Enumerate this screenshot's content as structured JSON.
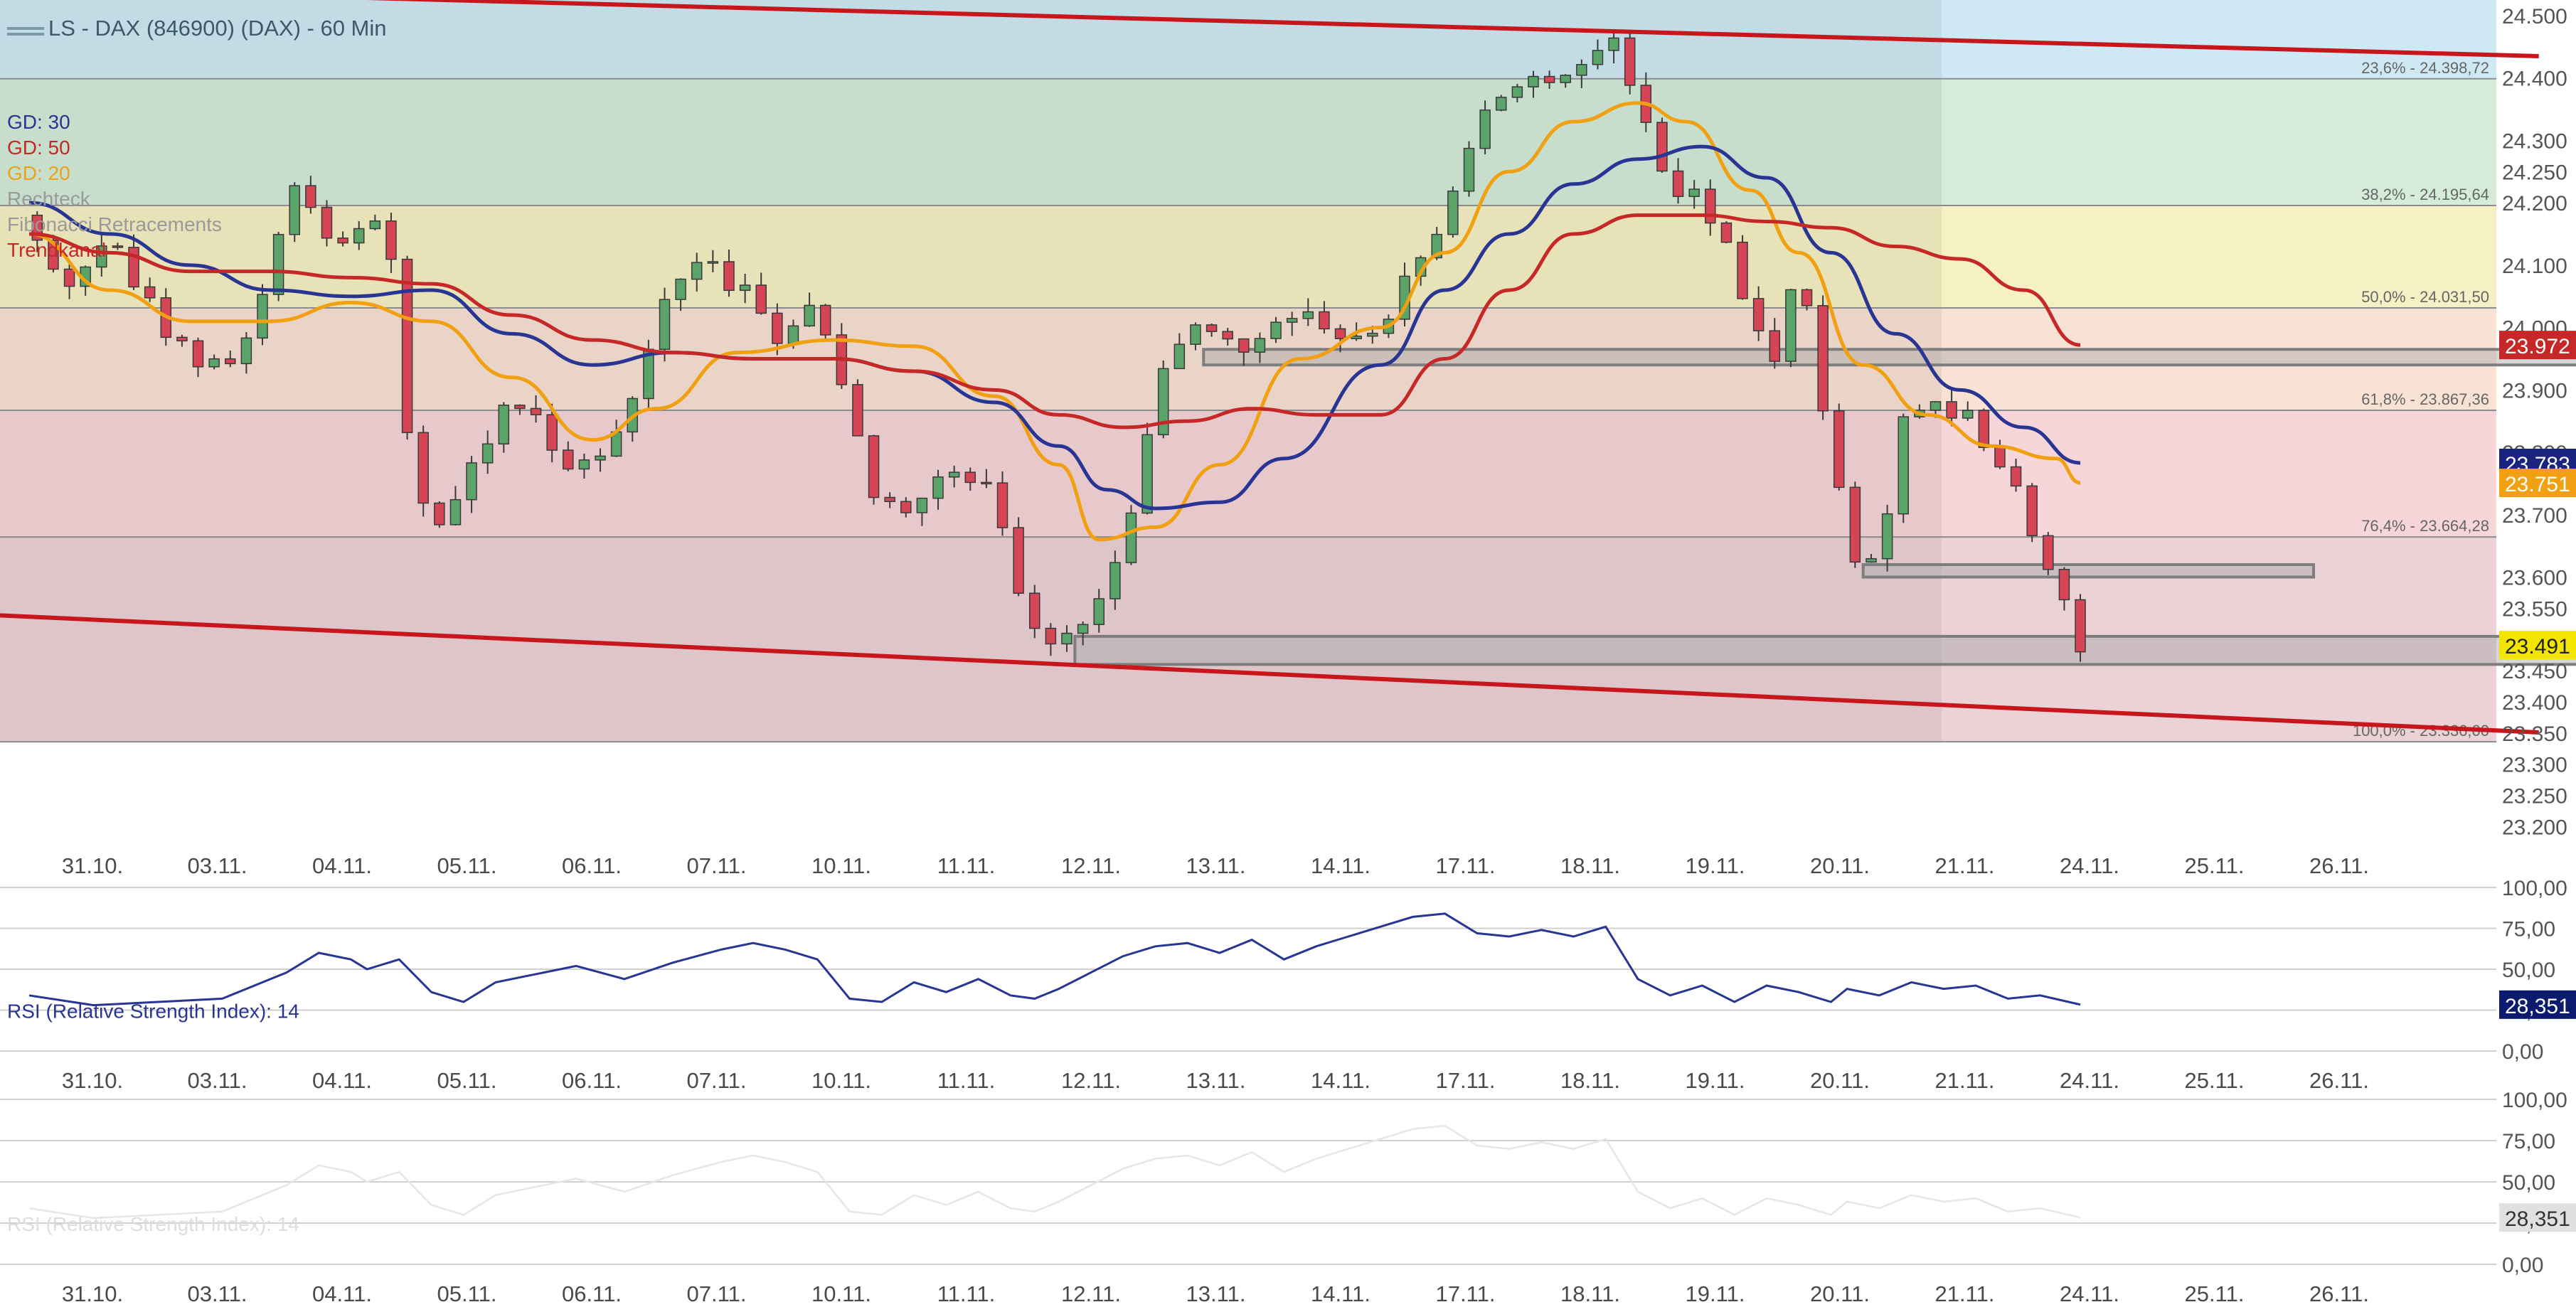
{
  "title": "LS - DAX (846900) (DAX) - 60 Min",
  "legend": [
    {
      "label": "GD: 30",
      "color": "#283593"
    },
    {
      "label": "GD: 50",
      "color": "#c62828"
    },
    {
      "label": "GD: 20",
      "color": "#f0a010"
    },
    {
      "label": "Rechteck",
      "color": "#9a9a9a"
    },
    {
      "label": "Fibonacci Retracements",
      "color": "#9a9a9a"
    },
    {
      "label": "Trendkanal",
      "color": "#c62828"
    }
  ],
  "colors": {
    "up": "#5aa469",
    "down": "#d64556",
    "rsi": "#283593"
  },
  "chart_data": [
    {
      "type": "candlestick",
      "title": "LS - DAX (846900) (DAX) - 60 Min",
      "ylim": [
        23180,
        24525
      ],
      "y_ticks": [
        "24.500",
        "24.400",
        "24.300",
        "24.250",
        "24.200",
        "24.100",
        "24.000",
        "23.900",
        "23.800",
        "23.700",
        "23.600",
        "23.550",
        "23.500",
        "23.450",
        "23.400",
        "23.350",
        "23.300",
        "23.250",
        "23.200"
      ],
      "x_ticks": [
        "31.10.",
        "03.11.",
        "04.11.",
        "05.11.",
        "06.11.",
        "07.11.",
        "10.11.",
        "11.11.",
        "12.11.",
        "13.11.",
        "14.11.",
        "17.11.",
        "18.11.",
        "19.11.",
        "20.11.",
        "21.11.",
        "24.11.",
        "25.11.",
        "26.11."
      ],
      "last_values": [
        {
          "label": "23.972",
          "color": "#c62828"
        },
        {
          "label": "23.783",
          "color": "#1a237e"
        },
        {
          "label": "23.751",
          "color": "#f0a010"
        },
        {
          "label": "23.491",
          "color": "#f2e600"
        }
      ],
      "fibonacci": [
        {
          "label": "23,6% - 24.398,72",
          "value": 24398.72
        },
        {
          "label": "38,2% - 24.195,64",
          "value": 24195.64
        },
        {
          "label": "50,0% - 24.031,50",
          "value": 24031.5
        },
        {
          "label": "61,8% - 23.867,36",
          "value": 23867.36
        },
        {
          "label": "76,4% - 23.664,28",
          "value": 23664.28
        },
        {
          "label": "100,0% - 23.336,00",
          "value": 23336.0
        }
      ],
      "price_path": [
        [
          0.0,
          24180
        ],
        [
          2.0,
          24060
        ],
        [
          5.0,
          24150
        ],
        [
          8.0,
          24010
        ],
        [
          10.5,
          23930
        ],
        [
          13.0,
          23960
        ],
        [
          14.5,
          24060
        ],
        [
          16.5,
          24230
        ],
        [
          18.0,
          24160
        ],
        [
          20.0,
          24140
        ],
        [
          21.5,
          24170
        ],
        [
          22.5,
          24110
        ],
        [
          23.5,
          23830
        ],
        [
          24.5,
          23720
        ],
        [
          25.5,
          23680
        ],
        [
          27.0,
          23760
        ],
        [
          29.0,
          23850
        ],
        [
          30.5,
          23870
        ],
        [
          33.0,
          23800
        ],
        [
          35.0,
          23760
        ],
        [
          37.0,
          23850
        ],
        [
          39.0,
          24000
        ],
        [
          40.5,
          24090
        ],
        [
          42.0,
          24100
        ],
        [
          44.5,
          24060
        ],
        [
          46.5,
          23960
        ],
        [
          48.5,
          24020
        ],
        [
          50.0,
          23960
        ],
        [
          52.0,
          23760
        ],
        [
          54.0,
          23690
        ],
        [
          56.0,
          23760
        ],
        [
          58.0,
          23780
        ],
        [
          60.0,
          23740
        ],
        [
          61.0,
          23620
        ],
        [
          62.5,
          23500
        ],
        [
          63.5,
          23480
        ],
        [
          65.5,
          23520
        ],
        [
          67.5,
          23620
        ],
        [
          69.0,
          23760
        ],
        [
          70.0,
          23880
        ],
        [
          71.0,
          23960
        ],
        [
          73.0,
          24000
        ],
        [
          75.0,
          23960
        ],
        [
          77.0,
          24010
        ],
        [
          79.0,
          24040
        ],
        [
          81.0,
          23990
        ],
        [
          83.0,
          23960
        ],
        [
          85.0,
          24040
        ],
        [
          86.5,
          24110
        ],
        [
          88.5,
          24200
        ],
        [
          89.5,
          24300
        ],
        [
          91.0,
          24370
        ],
        [
          93.0,
          24390
        ],
        [
          95.0,
          24410
        ],
        [
          97.0,
          24430
        ],
        [
          98.5,
          24480
        ],
        [
          100.0,
          24350
        ],
        [
          102.0,
          24220
        ],
        [
          104.0,
          24200
        ],
        [
          105.5,
          24120
        ],
        [
          107.0,
          24000
        ],
        [
          108.5,
          23960
        ],
        [
          109.5,
          24060
        ],
        [
          110.5,
          24020
        ],
        [
          111.5,
          23850
        ],
        [
          112.5,
          23760
        ],
        [
          113.5,
          23640
        ],
        [
          114.5,
          23620
        ],
        [
          115.5,
          23700
        ],
        [
          116.5,
          23860
        ],
        [
          118.0,
          23880
        ],
        [
          120.0,
          23860
        ],
        [
          121.0,
          23880
        ],
        [
          122.0,
          23770
        ],
        [
          123.5,
          23740
        ],
        [
          124.5,
          23680
        ],
        [
          125.5,
          23610
        ],
        [
          126.5,
          23560
        ],
        [
          127.5,
          23491
        ]
      ],
      "ma_lines": [
        {
          "name": "GD: 20",
          "color": "#f0a010",
          "points": [
            [
              0.0,
              24150
            ],
            [
              5.0,
              24060
            ],
            [
              10.0,
              24010
            ],
            [
              15.0,
              24010
            ],
            [
              20.0,
              24040
            ],
            [
              25.0,
              24010
            ],
            [
              30.0,
              23920
            ],
            [
              35.0,
              23820
            ],
            [
              39.0,
              23870
            ],
            [
              44.0,
              23960
            ],
            [
              50.0,
              23980
            ],
            [
              55.0,
              23970
            ],
            [
              60.0,
              23890
            ],
            [
              64.0,
              23780
            ],
            [
              66.5,
              23660
            ],
            [
              70.0,
              23680
            ],
            [
              74.0,
              23780
            ],
            [
              79.0,
              23950
            ],
            [
              84.0,
              24000
            ],
            [
              88.0,
              24120
            ],
            [
              92.0,
              24250
            ],
            [
              96.0,
              24330
            ],
            [
              100.0,
              24360
            ],
            [
              103.0,
              24330
            ],
            [
              107.0,
              24220
            ],
            [
              110.0,
              24120
            ],
            [
              114.0,
              23940
            ],
            [
              118.0,
              23860
            ],
            [
              122.0,
              23810
            ],
            [
              126.0,
              23790
            ],
            [
              127.5,
              23751
            ]
          ]
        },
        {
          "name": "GD: 30",
          "color": "#283593",
          "points": [
            [
              0.0,
              24200
            ],
            [
              5.0,
              24150
            ],
            [
              10.0,
              24100
            ],
            [
              15.0,
              24060
            ],
            [
              20.0,
              24050
            ],
            [
              25.0,
              24060
            ],
            [
              30.0,
              23990
            ],
            [
              35.0,
              23940
            ],
            [
              40.0,
              23960
            ],
            [
              45.0,
              23950
            ],
            [
              50.0,
              23950
            ],
            [
              55.0,
              23930
            ],
            [
              60.0,
              23880
            ],
            [
              64.0,
              23810
            ],
            [
              67.0,
              23740
            ],
            [
              70.0,
              23710
            ],
            [
              74.0,
              23720
            ],
            [
              78.0,
              23790
            ],
            [
              84.0,
              23940
            ],
            [
              88.0,
              24060
            ],
            [
              92.0,
              24150
            ],
            [
              96.0,
              24230
            ],
            [
              100.0,
              24270
            ],
            [
              104.0,
              24290
            ],
            [
              108.0,
              24240
            ],
            [
              112.0,
              24120
            ],
            [
              116.0,
              23990
            ],
            [
              120.0,
              23900
            ],
            [
              124.0,
              23840
            ],
            [
              127.5,
              23783
            ]
          ]
        },
        {
          "name": "GD: 50",
          "color": "#c62828",
          "points": [
            [
              0.0,
              24150
            ],
            [
              5.0,
              24120
            ],
            [
              10.0,
              24090
            ],
            [
              15.0,
              24090
            ],
            [
              20.0,
              24080
            ],
            [
              25.0,
              24070
            ],
            [
              30.0,
              24020
            ],
            [
              35.0,
              23980
            ],
            [
              40.0,
              23960
            ],
            [
              45.0,
              23950
            ],
            [
              50.0,
              23950
            ],
            [
              55.0,
              23930
            ],
            [
              60.0,
              23900
            ],
            [
              64.0,
              23860
            ],
            [
              68.0,
              23840
            ],
            [
              72.0,
              23850
            ],
            [
              76.0,
              23870
            ],
            [
              80.0,
              23860
            ],
            [
              84.0,
              23860
            ],
            [
              88.0,
              23950
            ],
            [
              92.0,
              24060
            ],
            [
              96.0,
              24150
            ],
            [
              100.0,
              24180
            ],
            [
              104.0,
              24180
            ],
            [
              108.0,
              24170
            ],
            [
              112.0,
              24160
            ],
            [
              116.0,
              24130
            ],
            [
              120.0,
              24110
            ],
            [
              124.0,
              24060
            ],
            [
              127.5,
              23972
            ]
          ]
        }
      ],
      "trend_channel": {
        "upper": [
          [
            -3.0,
            24545
          ],
          [
            156.0,
            24435
          ]
        ],
        "lower": [
          [
            -3.0,
            23540
          ],
          [
            156.0,
            23351
          ]
        ]
      },
      "rectangles": [
        {
          "x": [
            73.0,
            162.0
          ],
          "y": [
            23940,
            23965
          ]
        },
        {
          "x": [
            114.0,
            142.0
          ],
          "y": [
            23600,
            23620
          ]
        },
        {
          "x": [
            65.0,
            179.0
          ],
          "y": [
            23460,
            23505
          ]
        }
      ]
    },
    {
      "type": "line",
      "title": "RSI (Relative Strength Index): 14",
      "ylim": [
        0,
        100
      ],
      "y_ticks": [
        "100,00",
        "75,00",
        "50,00",
        "25,00",
        "0,00"
      ],
      "x_ticks": [
        "31.10.",
        "03.11.",
        "04.11.",
        "05.11.",
        "06.11.",
        "07.11.",
        "10.11.",
        "11.11.",
        "12.11.",
        "13.11.",
        "14.11.",
        "17.11.",
        "18.11.",
        "19.11.",
        "20.11.",
        "21.11.",
        "24.11.",
        "25.11.",
        "26.11."
      ],
      "last_value": "28,351",
      "x": [
        0,
        4,
        8,
        12,
        16,
        18,
        20,
        21,
        23,
        25,
        27,
        29,
        31,
        34,
        37,
        40,
        43,
        45,
        47,
        49,
        51,
        53,
        55,
        57,
        59,
        61,
        62.5,
        64,
        66,
        68,
        70,
        72,
        74,
        76,
        78,
        80,
        82,
        84,
        86,
        88,
        90,
        92,
        94,
        96,
        98,
        100,
        102,
        104,
        106,
        108,
        110,
        112,
        113,
        115,
        117,
        119,
        121,
        123,
        125,
        127.5
      ],
      "values": [
        34,
        28,
        30,
        32,
        48,
        60,
        56,
        50,
        56,
        36,
        30,
        42,
        46,
        52,
        44,
        54,
        62,
        66,
        62,
        56,
        32,
        30,
        42,
        36,
        44,
        34,
        32,
        38,
        48,
        58,
        64,
        66,
        60,
        68,
        56,
        64,
        70,
        76,
        82,
        84,
        72,
        70,
        74,
        70,
        76,
        44,
        34,
        40,
        30,
        40,
        36,
        30,
        38,
        34,
        42,
        38,
        40,
        32,
        34,
        28.35
      ]
    },
    {
      "type": "line",
      "title": "RSI (Relative Strength Index): 14",
      "ylim": [
        0,
        100
      ],
      "y_ticks": [
        "100,00",
        "75,00",
        "50,00",
        "25,00",
        "0,00"
      ],
      "x_ticks": [
        "31.10.",
        "03.11.",
        "04.11.",
        "05.11.",
        "06.11.",
        "07.11.",
        "10.11.",
        "11.11.",
        "12.11.",
        "13.11.",
        "14.11.",
        "17.11.",
        "18.11.",
        "19.11.",
        "20.11.",
        "21.11.",
        "24.11.",
        "25.11.",
        "26.11."
      ],
      "last_value": "28,351"
    }
  ]
}
